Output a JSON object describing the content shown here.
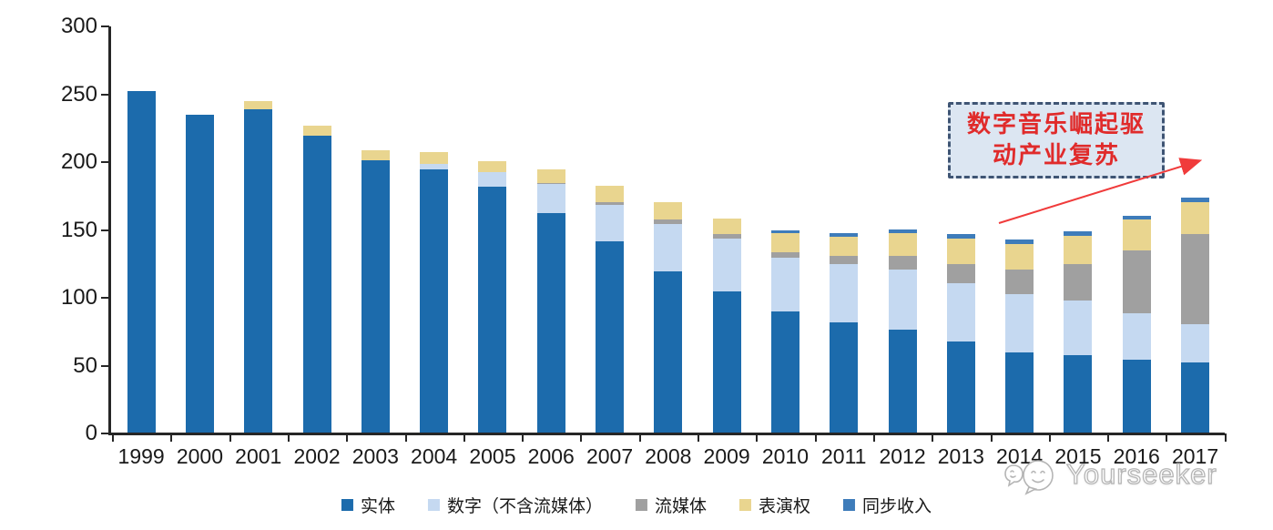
{
  "chart_data": {
    "type": "bar",
    "stacked": true,
    "title": "",
    "xlabel": "",
    "ylabel": "",
    "categories": [
      "1999",
      "2000",
      "2001",
      "2002",
      "2003",
      "2004",
      "2005",
      "2006",
      "2007",
      "2008",
      "2009",
      "2010",
      "2011",
      "2012",
      "2013",
      "2014",
      "2015",
      "2016",
      "2017"
    ],
    "series": [
      {
        "name": "实体",
        "color": "#1c6bac",
        "values": [
          252,
          234,
          238,
          219,
          201,
          194,
          181,
          162,
          141,
          119,
          104,
          89,
          81,
          76,
          67,
          59,
          57,
          54,
          52
        ]
      },
      {
        "name": "数字（不含流媒体）",
        "color": "#c5d9f1",
        "values": [
          0,
          0,
          0,
          0,
          0,
          4,
          11,
          21,
          27,
          35,
          39,
          40,
          43,
          44,
          43,
          43,
          40,
          34,
          28
        ]
      },
      {
        "name": "流媒体",
        "color": "#a0a0a0",
        "values": [
          0,
          0,
          0,
          0,
          0,
          0,
          0,
          1,
          2,
          3,
          3,
          4,
          6,
          10,
          14,
          18,
          27,
          46,
          66
        ]
      },
      {
        "name": "表演权",
        "color": "#e9d58f",
        "values": [
          0,
          0,
          6,
          7,
          7,
          9,
          8,
          10,
          12,
          13,
          12,
          14,
          14,
          17,
          19,
          19,
          21,
          23,
          24
        ]
      },
      {
        "name": "同步收入",
        "color": "#3e7cba",
        "values": [
          0,
          0,
          0,
          0,
          0,
          0,
          0,
          0,
          0,
          0,
          0,
          2,
          3,
          3,
          3,
          3,
          3,
          3,
          3
        ]
      }
    ],
    "ylim": [
      0,
      300
    ],
    "yticks": [
      0,
      50,
      100,
      150,
      200,
      250,
      300
    ],
    "grid": false,
    "legend_position": "bottom"
  },
  "annotation": {
    "line1": "数字音乐崛起驱",
    "line2": "动产业复苏",
    "text_color": "#e02b2b",
    "box_fill": "#dce6f2",
    "box_border": "#3f5574",
    "arrow_color": "#f03b3b"
  },
  "watermark": {
    "text": "Yourseeker"
  }
}
